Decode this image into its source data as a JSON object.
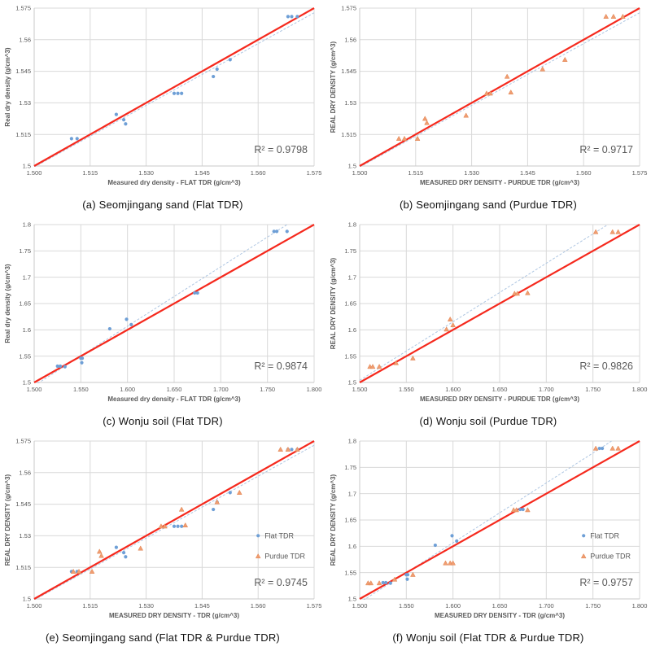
{
  "page": {
    "background": "#ffffff"
  },
  "colors": {
    "grid": "#d9d9d9",
    "axis": "#c9c9c9",
    "tick_text": "#595959",
    "axis_title_text": "#595959",
    "r2_text": "#595959",
    "identity_line": "#f5291d",
    "fit_line": "#aec6e2",
    "flat_marker": "#6e9fd6",
    "purdue_marker": "#f09d71",
    "purdue_marker_edge": "#e0824e",
    "caption_text": "#111111"
  },
  "legend_labels": {
    "flat": "Flat TDR",
    "purdue": "Purdue TDR"
  },
  "chart_data": [
    {
      "type": "scatter",
      "caption": "(a) Seomjingang sand (Flat TDR)",
      "xlabel": "Measured dry density - FLAT TDR (g/cm^3)",
      "ylabel": "Real dry density (g/cm^3)",
      "r2_label": "R² = 0.9798",
      "xlim": [
        1.5,
        1.575
      ],
      "ylim": [
        1.5,
        1.575
      ],
      "xtick_values": [
        1.5,
        1.515,
        1.53,
        1.545,
        1.56,
        1.575
      ],
      "xtick_labels": [
        "1.500",
        "1.515",
        "1.530",
        "1.545",
        "1.560",
        "1.575"
      ],
      "ytick_values": [
        1.5,
        1.515,
        1.53,
        1.545,
        1.56,
        1.575
      ],
      "ytick_labels": [
        "1.5",
        "1.515",
        "1.53",
        "1.545",
        "1.56",
        "1.575"
      ],
      "grid": true,
      "legend": false,
      "identity_line": [
        [
          1.5,
          1.5
        ],
        [
          1.575,
          1.575
        ]
      ],
      "fit_line": [
        [
          1.5,
          1.4995
        ],
        [
          1.575,
          1.5728
        ]
      ],
      "series": [
        {
          "name": "Flat TDR",
          "marker": "circle",
          "points": [
            [
              1.51,
              1.513
            ],
            [
              1.5115,
              1.513
            ],
            [
              1.522,
              1.5245
            ],
            [
              1.524,
              1.522
            ],
            [
              1.5245,
              1.52
            ],
            [
              1.5375,
              1.5345
            ],
            [
              1.5385,
              1.5345
            ],
            [
              1.5395,
              1.5345
            ],
            [
              1.548,
              1.5425
            ],
            [
              1.549,
              1.546
            ],
            [
              1.5525,
              1.5505
            ],
            [
              1.568,
              1.571
            ],
            [
              1.569,
              1.571
            ],
            [
              1.5705,
              1.571
            ]
          ]
        }
      ]
    },
    {
      "type": "scatter",
      "caption": "(b) Seomjingang sand (Purdue TDR)",
      "xlabel": "MEASURED DRY DENSITY - PURDUE TDR (g/cm^3)",
      "ylabel": "REAL DRY DENSITY (g/cm^3)",
      "r2_label": "R² = 0.9717",
      "xlim": [
        1.5,
        1.575
      ],
      "ylim": [
        1.5,
        1.575
      ],
      "xtick_values": [
        1.5,
        1.515,
        1.53,
        1.545,
        1.56,
        1.575
      ],
      "xtick_labels": [
        "1.500",
        "1.515",
        "1.530",
        "1.545",
        "1.560",
        "1.575"
      ],
      "ytick_values": [
        1.5,
        1.515,
        1.53,
        1.545,
        1.56,
        1.575
      ],
      "ytick_labels": [
        "1.5",
        "1.515",
        "1.53",
        "1.545",
        "1.56",
        "1.575"
      ],
      "grid": true,
      "legend": false,
      "identity_line": [
        [
          1.5,
          1.5
        ],
        [
          1.575,
          1.575
        ]
      ],
      "fit_line": [
        [
          1.5,
          1.4995
        ],
        [
          1.575,
          1.5728
        ]
      ],
      "series": [
        {
          "name": "Purdue TDR",
          "marker": "triangle",
          "points": [
            [
              1.5105,
              1.513
            ],
            [
              1.512,
              1.513
            ],
            [
              1.5155,
              1.513
            ],
            [
              1.5175,
              1.5225
            ],
            [
              1.518,
              1.5205
            ],
            [
              1.5285,
              1.524
            ],
            [
              1.534,
              1.5345
            ],
            [
              1.535,
              1.5345
            ],
            [
              1.5395,
              1.5425
            ],
            [
              1.5405,
              1.535
            ],
            [
              1.549,
              1.546
            ],
            [
              1.555,
              1.5505
            ],
            [
              1.566,
              1.571
            ],
            [
              1.568,
              1.571
            ],
            [
              1.5705,
              1.571
            ]
          ]
        }
      ]
    },
    {
      "type": "scatter",
      "caption": "(c) Wonju soil (Flat TDR)",
      "xlabel": "Measured dry density - FLAT TDR (g/cm^3)",
      "ylabel": "Real dry density (g/cm^3)",
      "r2_label": "R² = 0.9874",
      "xlim": [
        1.5,
        1.8
      ],
      "ylim": [
        1.5,
        1.8
      ],
      "xtick_values": [
        1.5,
        1.55,
        1.6,
        1.65,
        1.7,
        1.75,
        1.8
      ],
      "xtick_labels": [
        "1.500",
        "1.550",
        "1.600",
        "1.650",
        "1.700",
        "1.750",
        "1.800"
      ],
      "ytick_values": [
        1.5,
        1.55,
        1.6,
        1.65,
        1.7,
        1.75,
        1.8
      ],
      "ytick_labels": [
        "1.5",
        "1.55",
        "1.6",
        "1.65",
        "1.7",
        "1.75",
        "1.8"
      ],
      "grid": true,
      "legend": false,
      "identity_line": [
        [
          1.5,
          1.5
        ],
        [
          1.8,
          1.8
        ]
      ],
      "fit_line": [
        [
          1.5,
          1.494
        ],
        [
          1.771,
          1.8
        ]
      ],
      "series": [
        {
          "name": "Flat TDR",
          "marker": "circle",
          "points": [
            [
              1.525,
              1.531
            ],
            [
              1.528,
              1.531
            ],
            [
              1.533,
              1.53
            ],
            [
              1.55,
              1.546
            ],
            [
              1.5515,
              1.546
            ],
            [
              1.551,
              1.5375
            ],
            [
              1.581,
              1.602
            ],
            [
              1.599,
              1.62
            ],
            [
              1.604,
              1.61
            ],
            [
              1.672,
              1.67
            ],
            [
              1.675,
              1.67
            ],
            [
              1.757,
              1.787
            ],
            [
              1.76,
              1.787
            ],
            [
              1.771,
              1.787
            ]
          ]
        }
      ]
    },
    {
      "type": "scatter",
      "caption": "(d) Wonju soil (Purdue TDR)",
      "xlabel": "MEASURED DRY DENSITY - PURDUE TDR (g/cm^3)",
      "ylabel": "REAL DRY DENSITY (g/cm^3)",
      "r2_label": "R² = 0.9826",
      "xlim": [
        1.5,
        1.8
      ],
      "ylim": [
        1.5,
        1.8
      ],
      "xtick_values": [
        1.5,
        1.55,
        1.6,
        1.65,
        1.7,
        1.75,
        1.8
      ],
      "xtick_labels": [
        "1.500",
        "1.550",
        "1.600",
        "1.650",
        "1.700",
        "1.750",
        "1.800"
      ],
      "ytick_values": [
        1.5,
        1.55,
        1.6,
        1.65,
        1.7,
        1.75,
        1.8
      ],
      "ytick_labels": [
        "1.5",
        "1.55",
        "1.6",
        "1.65",
        "1.7",
        "1.75",
        "1.8"
      ],
      "grid": true,
      "legend": false,
      "identity_line": [
        [
          1.5,
          1.5
        ],
        [
          1.8,
          1.8
        ]
      ],
      "fit_line": [
        [
          1.5,
          1.504
        ],
        [
          1.766,
          1.8
        ]
      ],
      "series": [
        {
          "name": "Purdue TDR",
          "marker": "triangle",
          "points": [
            [
              1.511,
              1.53
            ],
            [
              1.514,
              1.53
            ],
            [
              1.521,
              1.53
            ],
            [
              1.539,
              1.537
            ],
            [
              1.557,
              1.546
            ],
            [
              1.593,
              1.601
            ],
            [
              1.597,
              1.62
            ],
            [
              1.6,
              1.609
            ],
            [
              1.666,
              1.669
            ],
            [
              1.669,
              1.669
            ],
            [
              1.68,
              1.67
            ],
            [
              1.753,
              1.786
            ],
            [
              1.771,
              1.786
            ],
            [
              1.777,
              1.786
            ]
          ]
        }
      ]
    },
    {
      "type": "scatter",
      "caption": "(e) Seomjingang sand (Flat TDR & Purdue TDR)",
      "xlabel": "MEASURED DRY DENSITY - TDR (g/cm^3)",
      "ylabel": "REAL DRY DENSITY (g/cm^3)",
      "r2_label": "R² = 0.9745",
      "xlim": [
        1.5,
        1.575
      ],
      "ylim": [
        1.5,
        1.575
      ],
      "xtick_values": [
        1.5,
        1.515,
        1.53,
        1.545,
        1.56,
        1.575
      ],
      "xtick_labels": [
        "1.500",
        "1.515",
        "1.530",
        "1.545",
        "1.560",
        "1.575"
      ],
      "ytick_values": [
        1.5,
        1.515,
        1.53,
        1.545,
        1.56,
        1.575
      ],
      "ytick_labels": [
        "1.5",
        "1.515",
        "1.53",
        "1.545",
        "1.56",
        "1.575"
      ],
      "grid": true,
      "legend": true,
      "identity_line": [
        [
          1.5,
          1.5
        ],
        [
          1.575,
          1.575
        ]
      ],
      "fit_line": [
        [
          1.5,
          1.4995
        ],
        [
          1.575,
          1.573
        ]
      ],
      "series": [
        {
          "name": "Flat TDR",
          "marker": "circle",
          "points": [
            [
              1.51,
              1.513
            ],
            [
              1.5115,
              1.513
            ],
            [
              1.522,
              1.5245
            ],
            [
              1.524,
              1.522
            ],
            [
              1.5245,
              1.52
            ],
            [
              1.5375,
              1.5345
            ],
            [
              1.5385,
              1.5345
            ],
            [
              1.5395,
              1.5345
            ],
            [
              1.548,
              1.5425
            ],
            [
              1.549,
              1.546
            ],
            [
              1.5525,
              1.5505
            ],
            [
              1.568,
              1.571
            ],
            [
              1.569,
              1.571
            ],
            [
              1.5705,
              1.571
            ]
          ]
        },
        {
          "name": "Purdue TDR",
          "marker": "triangle",
          "points": [
            [
              1.5105,
              1.513
            ],
            [
              1.512,
              1.513
            ],
            [
              1.5155,
              1.513
            ],
            [
              1.5175,
              1.5225
            ],
            [
              1.518,
              1.5205
            ],
            [
              1.5285,
              1.524
            ],
            [
              1.534,
              1.5345
            ],
            [
              1.535,
              1.5345
            ],
            [
              1.5395,
              1.5425
            ],
            [
              1.5405,
              1.535
            ],
            [
              1.549,
              1.546
            ],
            [
              1.555,
              1.5505
            ],
            [
              1.566,
              1.571
            ],
            [
              1.568,
              1.571
            ],
            [
              1.5705,
              1.571
            ]
          ]
        }
      ]
    },
    {
      "type": "scatter",
      "caption": "(f) Wonju soil (Flat TDR & Purdue TDR)",
      "xlabel": "MEASURED DRY DENSITY - TDR (g/cm^3)",
      "ylabel": "REAL DRY DENSITY (g/cm^3)",
      "r2_label": "R² = 0.9757",
      "xlim": [
        1.5,
        1.8
      ],
      "ylim": [
        1.5,
        1.8
      ],
      "xtick_values": [
        1.5,
        1.55,
        1.6,
        1.65,
        1.7,
        1.75,
        1.8
      ],
      "xtick_labels": [
        "1.500",
        "1.550",
        "1.600",
        "1.650",
        "1.700",
        "1.750",
        "1.800"
      ],
      "ytick_values": [
        1.5,
        1.55,
        1.6,
        1.65,
        1.7,
        1.75,
        1.8
      ],
      "ytick_labels": [
        "1.5",
        "1.55",
        "1.6",
        "1.65",
        "1.7",
        "1.75",
        "1.8"
      ],
      "grid": true,
      "legend": true,
      "identity_line": [
        [
          1.5,
          1.5
        ],
        [
          1.8,
          1.8
        ]
      ],
      "fit_line": [
        [
          1.5,
          1.493
        ],
        [
          1.77,
          1.8
        ]
      ],
      "series": [
        {
          "name": "Flat TDR",
          "marker": "circle",
          "points": [
            [
              1.525,
              1.531
            ],
            [
              1.528,
              1.531
            ],
            [
              1.533,
              1.53
            ],
            [
              1.55,
              1.546
            ],
            [
              1.5515,
              1.546
            ],
            [
              1.551,
              1.5375
            ],
            [
              1.581,
              1.602
            ],
            [
              1.599,
              1.62
            ],
            [
              1.604,
              1.61
            ],
            [
              1.672,
              1.67
            ],
            [
              1.675,
              1.67
            ],
            [
              1.757,
              1.786
            ],
            [
              1.76,
              1.786
            ]
          ]
        },
        {
          "name": "Purdue TDR",
          "marker": "triangle",
          "points": [
            [
              1.509,
              1.53
            ],
            [
              1.512,
              1.53
            ],
            [
              1.521,
              1.53
            ],
            [
              1.5375,
              1.537
            ],
            [
              1.557,
              1.546
            ],
            [
              1.592,
              1.568
            ],
            [
              1.597,
              1.568
            ],
            [
              1.6,
              1.568
            ],
            [
              1.665,
              1.669
            ],
            [
              1.668,
              1.669
            ],
            [
              1.68,
              1.669
            ],
            [
              1.753,
              1.786
            ],
            [
              1.771,
              1.786
            ],
            [
              1.777,
              1.786
            ]
          ]
        }
      ]
    }
  ]
}
